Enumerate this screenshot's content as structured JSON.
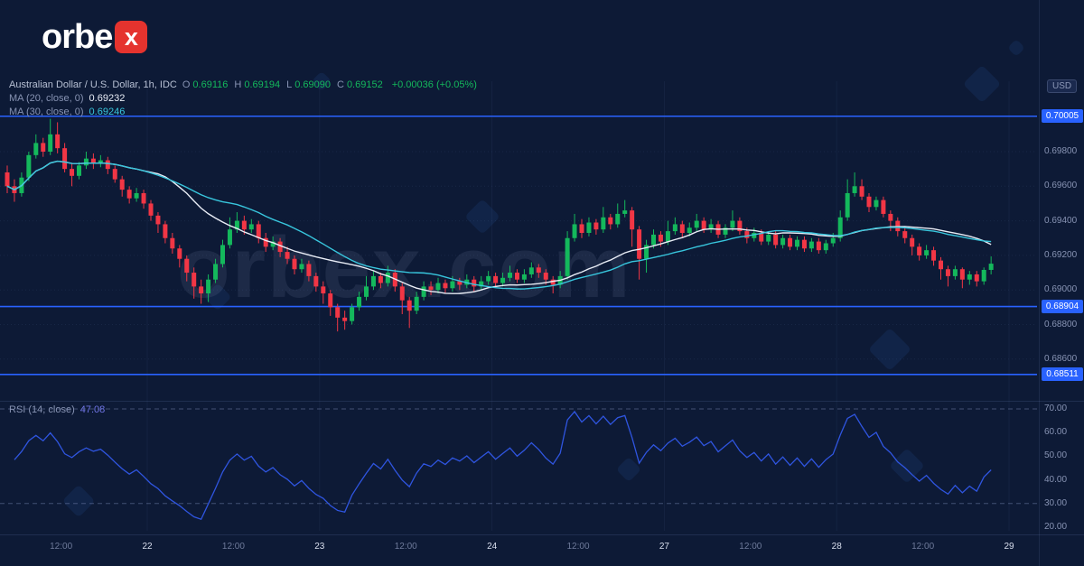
{
  "logo": {
    "prefix": "orbe",
    "suffix": "x"
  },
  "watermark_text": "orbex.com",
  "header": {
    "title": "Australian Dollar / U.S. Dollar, 1h, IDC",
    "ohlc": [
      {
        "k": "O",
        "v": "0.69116"
      },
      {
        "k": "H",
        "v": "0.69194"
      },
      {
        "k": "L",
        "v": "0.69090"
      },
      {
        "k": "C",
        "v": "0.69152"
      }
    ],
    "change": "+0.00036 (+0.05%)",
    "ma20_label": "MA (20, close, 0)",
    "ma20_value": "0.69232",
    "ma30_label": "MA (30, close, 0)",
    "ma30_value": "0.69246",
    "rsi_label": "RSI (14, close)",
    "rsi_value": "47.08"
  },
  "axis": {
    "currency": "USD"
  },
  "colors": {
    "background": "#0d1a36",
    "up": "#14b85c",
    "down": "#f23645",
    "ma20": "#e9edf6",
    "ma30": "#38c6dd",
    "rsi": "#2f55e0",
    "level": "#2962ff",
    "axis_text": "#8793b3",
    "watermark": "rgba(199,214,242,0.09)"
  },
  "chart_data": {
    "type": "candlestick",
    "symbol": "AUD/USD",
    "title": "Australian Dollar / U.S. Dollar, 1h, IDC",
    "timeframe": "1h",
    "source": "IDC",
    "last": {
      "open": 0.69116,
      "high": 0.69194,
      "low": 0.6909,
      "close": 0.69152,
      "change": "+0.00036 (+0.05%)"
    },
    "price_view_range": [
      0.6836,
      0.701
    ],
    "y_axis_ticks": [
      "0.69800",
      "0.69600",
      "0.69400",
      "0.69200",
      "0.69000",
      "0.68800",
      "0.68600"
    ],
    "levels": [
      {
        "price": 0.70005,
        "label": "0.70005"
      },
      {
        "price": 0.68904,
        "label": "0.68904"
      },
      {
        "price": 0.68511,
        "label": "0.68511"
      }
    ],
    "overlays": [
      {
        "name": "MA",
        "period": 20,
        "value": 0.69232
      },
      {
        "name": "MA",
        "period": 30,
        "value": 0.69246
      }
    ],
    "indicator": {
      "name": "RSI",
      "period": 14,
      "value": 47.08,
      "bands": [
        70,
        30
      ],
      "axis_range": [
        20,
        70
      ]
    },
    "rsi_axis_ticks": [
      "70.00",
      "60.00",
      "50.00",
      "40.00",
      "30.00",
      "20.00"
    ],
    "x_axis_ticks": [
      {
        "label": "12:00",
        "i": 7.5
      },
      {
        "label": "22",
        "i": 19.5,
        "day": true
      },
      {
        "label": "12:00",
        "i": 31.5
      },
      {
        "label": "23",
        "i": 43.5,
        "day": true
      },
      {
        "label": "12:00",
        "i": 55.5
      },
      {
        "label": "24",
        "i": 67.5,
        "day": true
      },
      {
        "label": "12:00",
        "i": 79.5
      },
      {
        "label": "27",
        "i": 91.5,
        "day": true
      },
      {
        "label": "12:00",
        "i": 103.5
      },
      {
        "label": "28",
        "i": 115.5,
        "day": true
      },
      {
        "label": "12:00",
        "i": 127.5
      },
      {
        "label": "29",
        "i": 139.5,
        "day": true
      }
    ],
    "candles_ohlc": [
      [
        0.6968,
        0.6972,
        0.6956,
        0.696
      ],
      [
        0.696,
        0.6964,
        0.6951,
        0.6956
      ],
      [
        0.6956,
        0.6968,
        0.6954,
        0.6965
      ],
      [
        0.6965,
        0.698,
        0.6963,
        0.6978
      ],
      [
        0.6978,
        0.699,
        0.6976,
        0.6985
      ],
      [
        0.6985,
        0.6988,
        0.6977,
        0.698
      ],
      [
        0.698,
        0.6999,
        0.6978,
        0.699
      ],
      [
        0.699,
        0.6997,
        0.6979,
        0.6982
      ],
      [
        0.6982,
        0.6985,
        0.6968,
        0.697
      ],
      [
        0.697,
        0.6973,
        0.696,
        0.6966
      ],
      [
        0.6966,
        0.6974,
        0.6964,
        0.6972
      ],
      [
        0.6972,
        0.698,
        0.697,
        0.6976
      ],
      [
        0.6976,
        0.6979,
        0.697,
        0.6973
      ],
      [
        0.6973,
        0.6978,
        0.6971,
        0.6975
      ],
      [
        0.6975,
        0.6977,
        0.6967,
        0.697
      ],
      [
        0.697,
        0.6972,
        0.6962,
        0.6964
      ],
      [
        0.6964,
        0.6966,
        0.6954,
        0.6958
      ],
      [
        0.6958,
        0.696,
        0.695,
        0.6953
      ],
      [
        0.6953,
        0.6959,
        0.6951,
        0.6956
      ],
      [
        0.6956,
        0.6958,
        0.6947,
        0.695
      ],
      [
        0.695,
        0.6952,
        0.694,
        0.6943
      ],
      [
        0.6943,
        0.6945,
        0.6933,
        0.6938
      ],
      [
        0.6938,
        0.694,
        0.6927,
        0.693
      ],
      [
        0.693,
        0.6933,
        0.6921,
        0.6924
      ],
      [
        0.6924,
        0.6926,
        0.6913,
        0.6918
      ],
      [
        0.6918,
        0.692,
        0.6905,
        0.691
      ],
      [
        0.691,
        0.6913,
        0.6895,
        0.6902
      ],
      [
        0.6902,
        0.6906,
        0.6892,
        0.6898
      ],
      [
        0.6898,
        0.6909,
        0.6893,
        0.6906
      ],
      [
        0.6906,
        0.6918,
        0.6904,
        0.6915
      ],
      [
        0.6915,
        0.6929,
        0.6913,
        0.6926
      ],
      [
        0.6926,
        0.6942,
        0.6924,
        0.6935
      ],
      [
        0.6935,
        0.6945,
        0.6933,
        0.694
      ],
      [
        0.694,
        0.6943,
        0.6932,
        0.6935
      ],
      [
        0.6935,
        0.6941,
        0.6933,
        0.6938
      ],
      [
        0.6938,
        0.694,
        0.6927,
        0.693
      ],
      [
        0.693,
        0.6933,
        0.6922,
        0.6925
      ],
      [
        0.6925,
        0.6931,
        0.6923,
        0.6928
      ],
      [
        0.6928,
        0.693,
        0.6919,
        0.6922
      ],
      [
        0.6922,
        0.6925,
        0.6915,
        0.6918
      ],
      [
        0.6918,
        0.692,
        0.6909,
        0.6912
      ],
      [
        0.6912,
        0.6918,
        0.691,
        0.6915
      ],
      [
        0.6915,
        0.6917,
        0.6905,
        0.6908
      ],
      [
        0.6908,
        0.691,
        0.6899,
        0.6902
      ],
      [
        0.6902,
        0.6905,
        0.6892,
        0.6898
      ],
      [
        0.6898,
        0.69,
        0.6885,
        0.689
      ],
      [
        0.689,
        0.6892,
        0.6876,
        0.6884
      ],
      [
        0.6884,
        0.6888,
        0.6877,
        0.6882
      ],
      [
        0.6882,
        0.6892,
        0.688,
        0.689
      ],
      [
        0.689,
        0.6899,
        0.6888,
        0.6896
      ],
      [
        0.6896,
        0.6908,
        0.6894,
        0.6902
      ],
      [
        0.6902,
        0.6911,
        0.69,
        0.6908
      ],
      [
        0.6908,
        0.691,
        0.6901,
        0.6904
      ],
      [
        0.6904,
        0.6914,
        0.6902,
        0.691
      ],
      [
        0.691,
        0.6912,
        0.6899,
        0.6902
      ],
      [
        0.6902,
        0.6904,
        0.6886,
        0.6894
      ],
      [
        0.6894,
        0.6896,
        0.6878,
        0.6888
      ],
      [
        0.6888,
        0.6899,
        0.6886,
        0.6896
      ],
      [
        0.6896,
        0.6905,
        0.6894,
        0.6902
      ],
      [
        0.6902,
        0.6905,
        0.6897,
        0.69
      ],
      [
        0.69,
        0.6907,
        0.6898,
        0.6904
      ],
      [
        0.6904,
        0.6906,
        0.6898,
        0.6901
      ],
      [
        0.6901,
        0.6908,
        0.6899,
        0.6905
      ],
      [
        0.6905,
        0.6907,
        0.69,
        0.6903
      ],
      [
        0.6903,
        0.6909,
        0.6901,
        0.6906
      ],
      [
        0.6906,
        0.6908,
        0.6899,
        0.6902
      ],
      [
        0.6902,
        0.6908,
        0.69,
        0.6905
      ],
      [
        0.6905,
        0.6911,
        0.6903,
        0.6908
      ],
      [
        0.6908,
        0.691,
        0.6902,
        0.6904
      ],
      [
        0.6904,
        0.691,
        0.6902,
        0.6907
      ],
      [
        0.6907,
        0.6914,
        0.6905,
        0.691
      ],
      [
        0.691,
        0.6912,
        0.6904,
        0.6906
      ],
      [
        0.6906,
        0.6912,
        0.6904,
        0.6909
      ],
      [
        0.6909,
        0.6916,
        0.6907,
        0.6913
      ],
      [
        0.6913,
        0.6915,
        0.6907,
        0.691
      ],
      [
        0.691,
        0.6912,
        0.6903,
        0.6906
      ],
      [
        0.6906,
        0.6908,
        0.6898,
        0.6903
      ],
      [
        0.6903,
        0.6911,
        0.6901,
        0.6908
      ],
      [
        0.6908,
        0.6934,
        0.6906,
        0.693
      ],
      [
        0.693,
        0.6944,
        0.6928,
        0.6938
      ],
      [
        0.6938,
        0.6941,
        0.693,
        0.6933
      ],
      [
        0.6933,
        0.6942,
        0.6931,
        0.6939
      ],
      [
        0.6939,
        0.6941,
        0.6932,
        0.6935
      ],
      [
        0.6935,
        0.6948,
        0.6933,
        0.6942
      ],
      [
        0.6942,
        0.6944,
        0.6935,
        0.6938
      ],
      [
        0.6938,
        0.695,
        0.6936,
        0.6944
      ],
      [
        0.6944,
        0.6952,
        0.6942,
        0.6946
      ],
      [
        0.6946,
        0.6948,
        0.6925,
        0.6935
      ],
      [
        0.6935,
        0.6937,
        0.6906,
        0.6918
      ],
      [
        0.6918,
        0.6929,
        0.691,
        0.6926
      ],
      [
        0.6926,
        0.6935,
        0.6924,
        0.6932
      ],
      [
        0.6932,
        0.6934,
        0.6925,
        0.6928
      ],
      [
        0.6928,
        0.694,
        0.6926,
        0.6934
      ],
      [
        0.6934,
        0.6942,
        0.6932,
        0.6938
      ],
      [
        0.6938,
        0.694,
        0.693,
        0.6933
      ],
      [
        0.6933,
        0.6939,
        0.6931,
        0.6936
      ],
      [
        0.6936,
        0.6944,
        0.6934,
        0.694
      ],
      [
        0.694,
        0.6942,
        0.6933,
        0.6935
      ],
      [
        0.6935,
        0.6941,
        0.6933,
        0.6938
      ],
      [
        0.6938,
        0.694,
        0.693,
        0.6932
      ],
      [
        0.6932,
        0.6938,
        0.693,
        0.6936
      ],
      [
        0.6936,
        0.6946,
        0.6934,
        0.694
      ],
      [
        0.694,
        0.6942,
        0.6932,
        0.6934
      ],
      [
        0.6934,
        0.6936,
        0.6927,
        0.693
      ],
      [
        0.693,
        0.6936,
        0.6928,
        0.6933
      ],
      [
        0.6933,
        0.6935,
        0.6926,
        0.6928
      ],
      [
        0.6928,
        0.6934,
        0.6926,
        0.6932
      ],
      [
        0.6932,
        0.6934,
        0.6924,
        0.6926
      ],
      [
        0.6926,
        0.6932,
        0.6924,
        0.693
      ],
      [
        0.693,
        0.6932,
        0.6923,
        0.6925
      ],
      [
        0.6925,
        0.6931,
        0.6923,
        0.6929
      ],
      [
        0.6929,
        0.6931,
        0.6922,
        0.6924
      ],
      [
        0.6924,
        0.693,
        0.6922,
        0.6928
      ],
      [
        0.6928,
        0.693,
        0.6921,
        0.6923
      ],
      [
        0.6923,
        0.6929,
        0.6921,
        0.6927
      ],
      [
        0.6927,
        0.6933,
        0.6925,
        0.693
      ],
      [
        0.693,
        0.6946,
        0.6928,
        0.6942
      ],
      [
        0.6942,
        0.6964,
        0.694,
        0.6956
      ],
      [
        0.6956,
        0.6968,
        0.6954,
        0.696
      ],
      [
        0.696,
        0.6964,
        0.6952,
        0.6954
      ],
      [
        0.6954,
        0.6956,
        0.6945,
        0.6948
      ],
      [
        0.6948,
        0.6954,
        0.6946,
        0.6952
      ],
      [
        0.6952,
        0.6954,
        0.6942,
        0.6944
      ],
      [
        0.6944,
        0.6946,
        0.6934,
        0.694
      ],
      [
        0.694,
        0.6942,
        0.6931,
        0.6934
      ],
      [
        0.6934,
        0.6936,
        0.6927,
        0.693
      ],
      [
        0.693,
        0.6932,
        0.692,
        0.6925
      ],
      [
        0.6925,
        0.6927,
        0.6917,
        0.692
      ],
      [
        0.692,
        0.6926,
        0.6918,
        0.6923
      ],
      [
        0.6923,
        0.6925,
        0.6914,
        0.6917
      ],
      [
        0.6917,
        0.6919,
        0.6906,
        0.6912
      ],
      [
        0.6912,
        0.6914,
        0.6902,
        0.6908
      ],
      [
        0.6908,
        0.6914,
        0.6906,
        0.6912
      ],
      [
        0.6912,
        0.6913,
        0.6901,
        0.6906
      ],
      [
        0.6906,
        0.6911,
        0.6903,
        0.6909
      ],
      [
        0.6909,
        0.6911,
        0.6902,
        0.6905
      ],
      [
        0.6905,
        0.6913,
        0.6903,
        0.69116
      ],
      [
        0.69116,
        0.69194,
        0.6909,
        0.69152
      ]
    ]
  }
}
